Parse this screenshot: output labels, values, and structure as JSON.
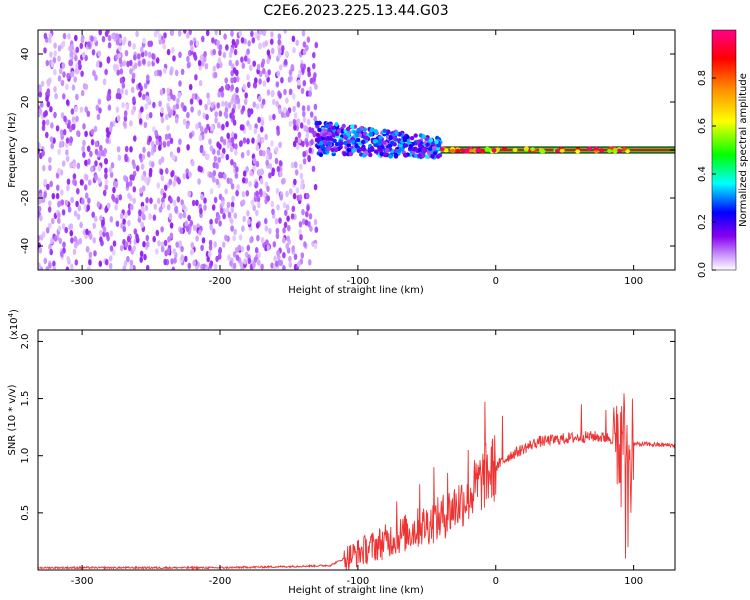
{
  "title": "C2E6.2023.225.13.44.G03",
  "chart_data": [
    {
      "type": "heatmap",
      "xlabel": "Height of straight line (km)",
      "ylabel": "Frequency (Hz)",
      "xlim": [
        -332,
        130
      ],
      "ylim": [
        -50,
        50
      ],
      "xticks": [
        -300,
        -200,
        -100,
        0,
        100
      ],
      "yticks": [
        -40,
        -20,
        0,
        20,
        40
      ],
      "grid": false,
      "colorbar": {
        "label": "Normalized spectral amplitude",
        "range": [
          0,
          1
        ],
        "ticks": [
          0.0,
          0.2,
          0.4,
          0.6,
          0.8
        ],
        "colormap": [
          "#ffffff",
          "#cc99ff",
          "#8800ee",
          "#0000ff",
          "#00ffff",
          "#00ff00",
          "#ffff00",
          "#ff8800",
          "#ff0000",
          "#ff0088"
        ]
      },
      "regions": [
        {
          "name": "noise",
          "x": [
            -332,
            -130
          ],
          "y": [
            -50,
            50
          ],
          "amplitude": [
            0.05,
            0.2
          ]
        },
        {
          "name": "track",
          "x": [
            -130,
            -40
          ],
          "y_center": [
            5,
            1
          ],
          "y_halfwidth": 7,
          "amplitude": [
            0.15,
            0.45
          ]
        },
        {
          "name": "locked",
          "x": [
            -40,
            97
          ],
          "y_center": 0,
          "amplitude": [
            0.6,
            1.0
          ]
        },
        {
          "name": "tone",
          "x": [
            97,
            130
          ],
          "y_center": 0,
          "amplitude": [
            0.8,
            1.0
          ]
        }
      ]
    },
    {
      "type": "line",
      "xlabel": "Height of straight line (km)",
      "ylabel": "SNR (10 * v/v)",
      "ymultiplier": "(x10",
      "ymultiplier_exp": "4",
      "xlim": [
        -332,
        130
      ],
      "ylim": [
        0,
        2.1
      ],
      "xticks": [
        -300,
        -200,
        -100,
        0,
        100
      ],
      "yticks": [
        0.5,
        1.0,
        1.5,
        2.0
      ],
      "color": "#ee3333",
      "grid": false,
      "x": [
        -332,
        -250,
        -200,
        -150,
        -120,
        -110,
        -100,
        -80,
        -60,
        -40,
        -20,
        -5,
        10,
        30,
        50,
        70,
        85,
        90,
        93,
        96,
        100,
        110,
        130
      ],
      "y": [
        0.02,
        0.02,
        0.02,
        0.03,
        0.04,
        0.1,
        0.15,
        0.25,
        0.35,
        0.45,
        0.65,
        0.85,
        1.0,
        1.12,
        1.15,
        1.17,
        1.15,
        1.1,
        1.25,
        1.0,
        1.1,
        1.1,
        1.09
      ],
      "spikes": [
        {
          "x": -72,
          "y": 0.6
        },
        {
          "x": -55,
          "y": 0.75
        },
        {
          "x": -45,
          "y": 0.9
        },
        {
          "x": -35,
          "y": 0.85
        },
        {
          "x": -20,
          "y": 1.05
        },
        {
          "x": -8,
          "y": 1.47
        },
        {
          "x": 5,
          "y": 1.35
        },
        {
          "x": 62,
          "y": 1.45
        },
        {
          "x": 80,
          "y": 1.4
        },
        {
          "x": 88,
          "y": 1.55
        },
        {
          "x": 91,
          "y": 1.75
        },
        {
          "x": 94,
          "y": 2.1
        },
        {
          "x": 96,
          "y": 1.8
        },
        {
          "x": 99,
          "y": 1.5
        }
      ],
      "dips": [
        {
          "x": 88,
          "y": 0.75
        },
        {
          "x": 91,
          "y": 0.55
        },
        {
          "x": 94,
          "y": 0.1
        },
        {
          "x": 96,
          "y": 0.2
        },
        {
          "x": 98,
          "y": 0.5
        }
      ]
    }
  ]
}
